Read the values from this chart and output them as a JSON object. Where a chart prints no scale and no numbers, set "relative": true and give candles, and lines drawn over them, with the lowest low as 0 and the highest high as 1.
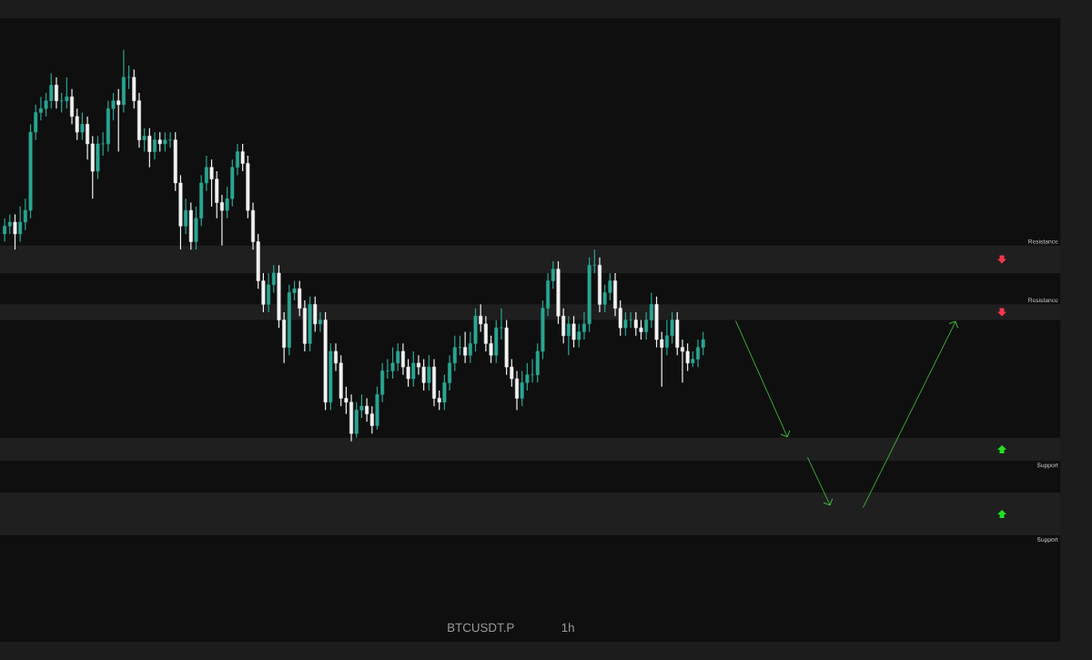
{
  "chart_data": {
    "type": "candlestick",
    "title": "BTCUSDT.P",
    "subtitle": "1h",
    "relative": true,
    "colors": [
      "#2aa693",
      "#2aa693",
      "#f2f2f2",
      "#2aa693",
      "#2aa693",
      "#2aa693",
      "#2aa693",
      "#2aa693",
      "#2aa693",
      "#2aa693",
      "#f2f2f2",
      "#2aa693",
      "#2aa693",
      "#f2f2f2",
      "#f2f2f2",
      "#2aa693",
      "#f2f2f2",
      "#f2f2f2",
      "#2aa693",
      "#2aa693",
      "#2aa693",
      "#2aa693",
      "#f2f2f2",
      "#2aa693",
      "#2aa693",
      "#f2f2f2",
      "#f2f2f2",
      "#2aa693",
      "#f2f2f2",
      "#2aa693",
      "#f2f2f2",
      "#2aa693",
      "#2aa693",
      "#f2f2f2",
      "#f2f2f2",
      "#2aa693",
      "#f2f2f2",
      "#2aa693",
      "#2aa693",
      "#2aa693",
      "#f2f2f2",
      "#f2f2f2",
      "#f2f2f2",
      "#2aa693",
      "#2aa693",
      "#2aa693",
      "#f2f2f2",
      "#f2f2f2",
      "#f2f2f2",
      "#f2f2f2",
      "#f2f2f2",
      "#2aa693",
      "#2aa693",
      "#f2f2f2",
      "#f2f2f2",
      "#2aa693",
      "#2aa693",
      "#f2f2f2",
      "#f2f2f2",
      "#2aa693",
      "#f2f2f2",
      "#2aa693",
      "#f2f2f2",
      "#2aa693",
      "#f2f2f2",
      "#f2f2f2",
      "#f2f2f2",
      "#f2f2f2",
      "#2aa693",
      "#2aa693",
      "#f2f2f2",
      "#f2f2f2",
      "#2aa693",
      "#2aa693",
      "#2aa693",
      "#2aa693",
      "#2aa693",
      "#f2f2f2",
      "#f2f2f2",
      "#2aa693",
      "#f2f2f2",
      "#f2f2f2",
      "#2aa693",
      "#f2f2f2",
      "#f2f2f2",
      "#2aa693",
      "#2aa693",
      "#2aa693",
      "#2aa693",
      "#f2f2f2",
      "#2aa693",
      "#2aa693",
      "#f2f2f2",
      "#f2f2f2",
      "#f2f2f2",
      "#2aa693",
      "#2aa693",
      "#f2f2f2",
      "#f2f2f2",
      "#f2f2f2",
      "#2aa693",
      "#2aa693",
      "#2aa693",
      "#2aa693",
      "#2aa693",
      "#2aa693",
      "#2aa693",
      "#f2f2f2",
      "#f2f2f2",
      "#2aa693",
      "#f2f2f2",
      "#2aa693",
      "#2aa693",
      "#2aa693",
      "#2aa693",
      "#f2f2f2",
      "#2aa693",
      "#2aa693",
      "#f2f2f2",
      "#f2f2f2",
      "#2aa693",
      "#2aa693",
      "#f2f2f2",
      "#f2f2f2",
      "#2aa693",
      "#2aa693",
      "#f2f2f2",
      "#f2f2f2",
      "#2aa693",
      "#2aa693",
      "#f2f2f2",
      "#f2f2f2",
      "#f2f2f2",
      "#2aa693",
      "#2aa693",
      "#2aa693"
    ],
    "categories": [
      null,
      null,
      null,
      null,
      null,
      null,
      null,
      null,
      null,
      null,
      null,
      null,
      null,
      null,
      null,
      null,
      null,
      null,
      null,
      null,
      null,
      null,
      null,
      null,
      null,
      null,
      null,
      null,
      null,
      null,
      null,
      null,
      null,
      null,
      null,
      null,
      null,
      null,
      null,
      null,
      null,
      null,
      null,
      null,
      null,
      null,
      null,
      null,
      null,
      null,
      null,
      null,
      null,
      null,
      null,
      null,
      null,
      null,
      null,
      null,
      null,
      null,
      null,
      null,
      null,
      null,
      null,
      null,
      null,
      null,
      null,
      null,
      null,
      null,
      null,
      null,
      null,
      null,
      null,
      null,
      null,
      null,
      null,
      null,
      null,
      null,
      null,
      null,
      null,
      null,
      null,
      null,
      null,
      null,
      null,
      null,
      null,
      null,
      null,
      null,
      null,
      null,
      null,
      null,
      null,
      null,
      null,
      null,
      null,
      null,
      null,
      null,
      null,
      null,
      null,
      null,
      null,
      null,
      null,
      null,
      null,
      null,
      null,
      null,
      null,
      null,
      null,
      null,
      null,
      null,
      null,
      null,
      null,
      null,
      null,
      null
    ],
    "ohlc": [
      [
        0.53,
        0.57,
        0.51,
        0.55
      ],
      [
        0.55,
        0.58,
        0.53,
        0.56
      ],
      [
        0.56,
        0.58,
        0.49,
        0.53
      ],
      [
        0.53,
        0.6,
        0.51,
        0.56
      ],
      [
        0.56,
        0.62,
        0.54,
        0.59
      ],
      [
        0.59,
        0.81,
        0.57,
        0.79
      ],
      [
        0.79,
        0.86,
        0.77,
        0.84
      ],
      [
        0.84,
        0.88,
        0.82,
        0.85
      ],
      [
        0.85,
        0.89,
        0.83,
        0.87
      ],
      [
        0.87,
        0.94,
        0.85,
        0.91
      ],
      [
        0.91,
        0.93,
        0.85,
        0.87
      ],
      [
        0.87,
        0.89,
        0.84,
        0.87
      ],
      [
        0.87,
        0.93,
        0.85,
        0.88
      ],
      [
        0.88,
        0.9,
        0.81,
        0.83
      ],
      [
        0.83,
        0.85,
        0.77,
        0.79
      ],
      [
        0.79,
        0.84,
        0.77,
        0.81
      ],
      [
        0.81,
        0.83,
        0.72,
        0.76
      ],
      [
        0.76,
        0.78,
        0.62,
        0.69
      ],
      [
        0.69,
        0.78,
        0.67,
        0.76
      ],
      [
        0.76,
        0.79,
        0.73,
        0.76
      ],
      [
        0.76,
        0.87,
        0.74,
        0.85
      ],
      [
        0.85,
        0.89,
        0.82,
        0.87
      ],
      [
        0.87,
        0.9,
        0.74,
        0.86
      ],
      [
        0.86,
        1,
        0.84,
        0.93
      ],
      [
        0.93,
        0.96,
        0.9,
        0.93
      ],
      [
        0.93,
        0.95,
        0.85,
        0.87
      ],
      [
        0.87,
        0.89,
        0.75,
        0.77
      ],
      [
        0.77,
        0.8,
        0.74,
        0.78
      ],
      [
        0.78,
        0.8,
        0.7,
        0.74
      ],
      [
        0.74,
        0.79,
        0.72,
        0.77
      ],
      [
        0.77,
        0.79,
        0.74,
        0.76
      ],
      [
        0.76,
        0.79,
        0.74,
        0.77
      ],
      [
        0.77,
        0.79,
        0.75,
        0.77
      ],
      [
        0.77,
        0.79,
        0.64,
        0.66
      ],
      [
        0.66,
        0.68,
        0.49,
        0.55
      ],
      [
        0.55,
        0.62,
        0.53,
        0.59
      ],
      [
        0.59,
        0.61,
        0.49,
        0.51
      ],
      [
        0.51,
        0.6,
        0.49,
        0.57
      ],
      [
        0.57,
        0.68,
        0.55,
        0.66
      ],
      [
        0.66,
        0.73,
        0.64,
        0.7
      ],
      [
        0.7,
        0.72,
        0.6,
        0.67
      ],
      [
        0.67,
        0.69,
        0.57,
        0.61
      ],
      [
        0.61,
        0.63,
        0.5,
        0.59
      ],
      [
        0.59,
        0.65,
        0.57,
        0.62
      ],
      [
        0.62,
        0.72,
        0.6,
        0.7
      ],
      [
        0.7,
        0.76,
        0.68,
        0.74
      ],
      [
        0.74,
        0.76,
        0.69,
        0.71
      ],
      [
        0.71,
        0.73,
        0.57,
        0.59
      ],
      [
        0.59,
        0.61,
        0.49,
        0.51
      ],
      [
        0.51,
        0.53,
        0.39,
        0.41
      ],
      [
        0.41,
        0.43,
        0.33,
        0.35
      ],
      [
        0.35,
        0.43,
        0.33,
        0.4
      ],
      [
        0.4,
        0.45,
        0.38,
        0.43
      ],
      [
        0.43,
        0.45,
        0.29,
        0.31
      ],
      [
        0.31,
        0.33,
        0.2,
        0.24
      ],
      [
        0.24,
        0.4,
        0.22,
        0.38
      ],
      [
        0.38,
        0.41,
        0.36,
        0.39
      ],
      [
        0.39,
        0.41,
        0.32,
        0.34
      ],
      [
        0.34,
        0.36,
        0.23,
        0.25
      ],
      [
        0.25,
        0.37,
        0.23,
        0.35
      ],
      [
        0.35,
        0.37,
        0.28,
        0.3
      ],
      [
        0.3,
        0.33,
        0.28,
        0.31
      ],
      [
        0.31,
        0.33,
        0.08,
        0.1
      ],
      [
        0.1,
        0.25,
        0.08,
        0.23
      ],
      [
        0.23,
        0.25,
        0.18,
        0.2
      ],
      [
        0.2,
        0.22,
        0.09,
        0.11
      ],
      [
        0.11,
        0.14,
        0.07,
        0.1
      ],
      [
        0.1,
        0.12,
        0,
        0.02
      ],
      [
        0.02,
        0.1,
        0.01,
        0.08
      ],
      [
        0.08,
        0.12,
        0.06,
        0.09
      ],
      [
        0.09,
        0.11,
        0.05,
        0.07
      ],
      [
        0.07,
        0.09,
        0.02,
        0.04
      ],
      [
        0.04,
        0.14,
        0.03,
        0.12
      ],
      [
        0.12,
        0.2,
        0.1,
        0.18
      ],
      [
        0.18,
        0.21,
        0.16,
        0.18
      ],
      [
        0.18,
        0.24,
        0.16,
        0.2
      ],
      [
        0.2,
        0.25,
        0.18,
        0.23
      ],
      [
        0.23,
        0.25,
        0.17,
        0.19
      ],
      [
        0.19,
        0.21,
        0.14,
        0.16
      ],
      [
        0.16,
        0.23,
        0.14,
        0.2
      ],
      [
        0.2,
        0.22,
        0.17,
        0.19
      ],
      [
        0.19,
        0.21,
        0.13,
        0.15
      ],
      [
        0.15,
        0.22,
        0.13,
        0.19
      ],
      [
        0.19,
        0.21,
        0.09,
        0.11
      ],
      [
        0.11,
        0.13,
        0.08,
        0.1
      ],
      [
        0.1,
        0.17,
        0.08,
        0.15
      ],
      [
        0.15,
        0.22,
        0.13,
        0.2
      ],
      [
        0.2,
        0.27,
        0.18,
        0.24
      ],
      [
        0.24,
        0.27,
        0.22,
        0.24
      ],
      [
        0.24,
        0.28,
        0.2,
        0.22
      ],
      [
        0.22,
        0.28,
        0.2,
        0.25
      ],
      [
        0.25,
        0.34,
        0.23,
        0.32
      ],
      [
        0.32,
        0.35,
        0.28,
        0.3
      ],
      [
        0.3,
        0.32,
        0.23,
        0.25
      ],
      [
        0.25,
        0.27,
        0.2,
        0.22
      ],
      [
        0.22,
        0.31,
        0.2,
        0.29
      ],
      [
        0.29,
        0.34,
        0.26,
        0.29
      ],
      [
        0.29,
        0.31,
        0.17,
        0.19
      ],
      [
        0.19,
        0.21,
        0.14,
        0.16
      ],
      [
        0.16,
        0.18,
        0.08,
        0.11
      ],
      [
        0.11,
        0.18,
        0.09,
        0.15
      ],
      [
        0.15,
        0.2,
        0.13,
        0.17
      ],
      [
        0.17,
        0.21,
        0.15,
        0.17
      ],
      [
        0.17,
        0.25,
        0.15,
        0.23
      ],
      [
        0.23,
        0.36,
        0.21,
        0.34
      ],
      [
        0.34,
        0.43,
        0.32,
        0.41
      ],
      [
        0.41,
        0.46,
        0.39,
        0.44
      ],
      [
        0.44,
        0.46,
        0.3,
        0.32
      ],
      [
        0.32,
        0.34,
        0.25,
        0.27
      ],
      [
        0.27,
        0.32,
        0.22,
        0.3
      ],
      [
        0.3,
        0.32,
        0.24,
        0.26
      ],
      [
        0.26,
        0.3,
        0.24,
        0.28
      ],
      [
        0.28,
        0.33,
        0.26,
        0.3
      ],
      [
        0.3,
        0.47,
        0.28,
        0.45
      ],
      [
        0.45,
        0.49,
        0.43,
        0.45
      ],
      [
        0.45,
        0.47,
        0.33,
        0.35
      ],
      [
        0.35,
        0.4,
        0.33,
        0.38
      ],
      [
        0.38,
        0.43,
        0.36,
        0.41
      ],
      [
        0.41,
        0.43,
        0.32,
        0.34
      ],
      [
        0.34,
        0.36,
        0.27,
        0.29
      ],
      [
        0.29,
        0.33,
        0.27,
        0.31
      ],
      [
        0.31,
        0.33,
        0.29,
        0.31
      ],
      [
        0.31,
        0.33,
        0.27,
        0.29
      ],
      [
        0.29,
        0.31,
        0.26,
        0.28
      ],
      [
        0.28,
        0.33,
        0.26,
        0.31
      ],
      [
        0.31,
        0.38,
        0.29,
        0.35
      ],
      [
        0.35,
        0.37,
        0.24,
        0.26
      ],
      [
        0.26,
        0.28,
        0.14,
        0.24
      ],
      [
        0.24,
        0.31,
        0.22,
        0.27
      ],
      [
        0.27,
        0.33,
        0.25,
        0.31
      ],
      [
        0.31,
        0.33,
        0.22,
        0.24
      ],
      [
        0.24,
        0.26,
        0.15,
        0.23
      ],
      [
        0.23,
        0.25,
        0.18,
        0.2
      ],
      [
        0.2,
        0.23,
        0.19,
        0.21
      ],
      [
        0.21,
        0.26,
        0.19,
        0.24
      ],
      [
        0.24,
        0.28,
        0.22,
        0.26
      ]
    ],
    "bands": [
      {
        "axis": "y",
        "from": 0.43,
        "to": 0.5,
        "label": "Resistance",
        "color": "#1f1f1f"
      },
      {
        "axis": "y",
        "from": 0.31,
        "to": 0.35,
        "label": "Resistance",
        "color": "#1f1f1f"
      },
      {
        "axis": "y",
        "from": -0.05,
        "to": 0.01,
        "label": "Support",
        "color": "#1f1f1f"
      },
      {
        "axis": "y",
        "from": -0.24,
        "to": -0.13,
        "label": "Support",
        "color": "#1f1f1f"
      }
    ]
  }
}
